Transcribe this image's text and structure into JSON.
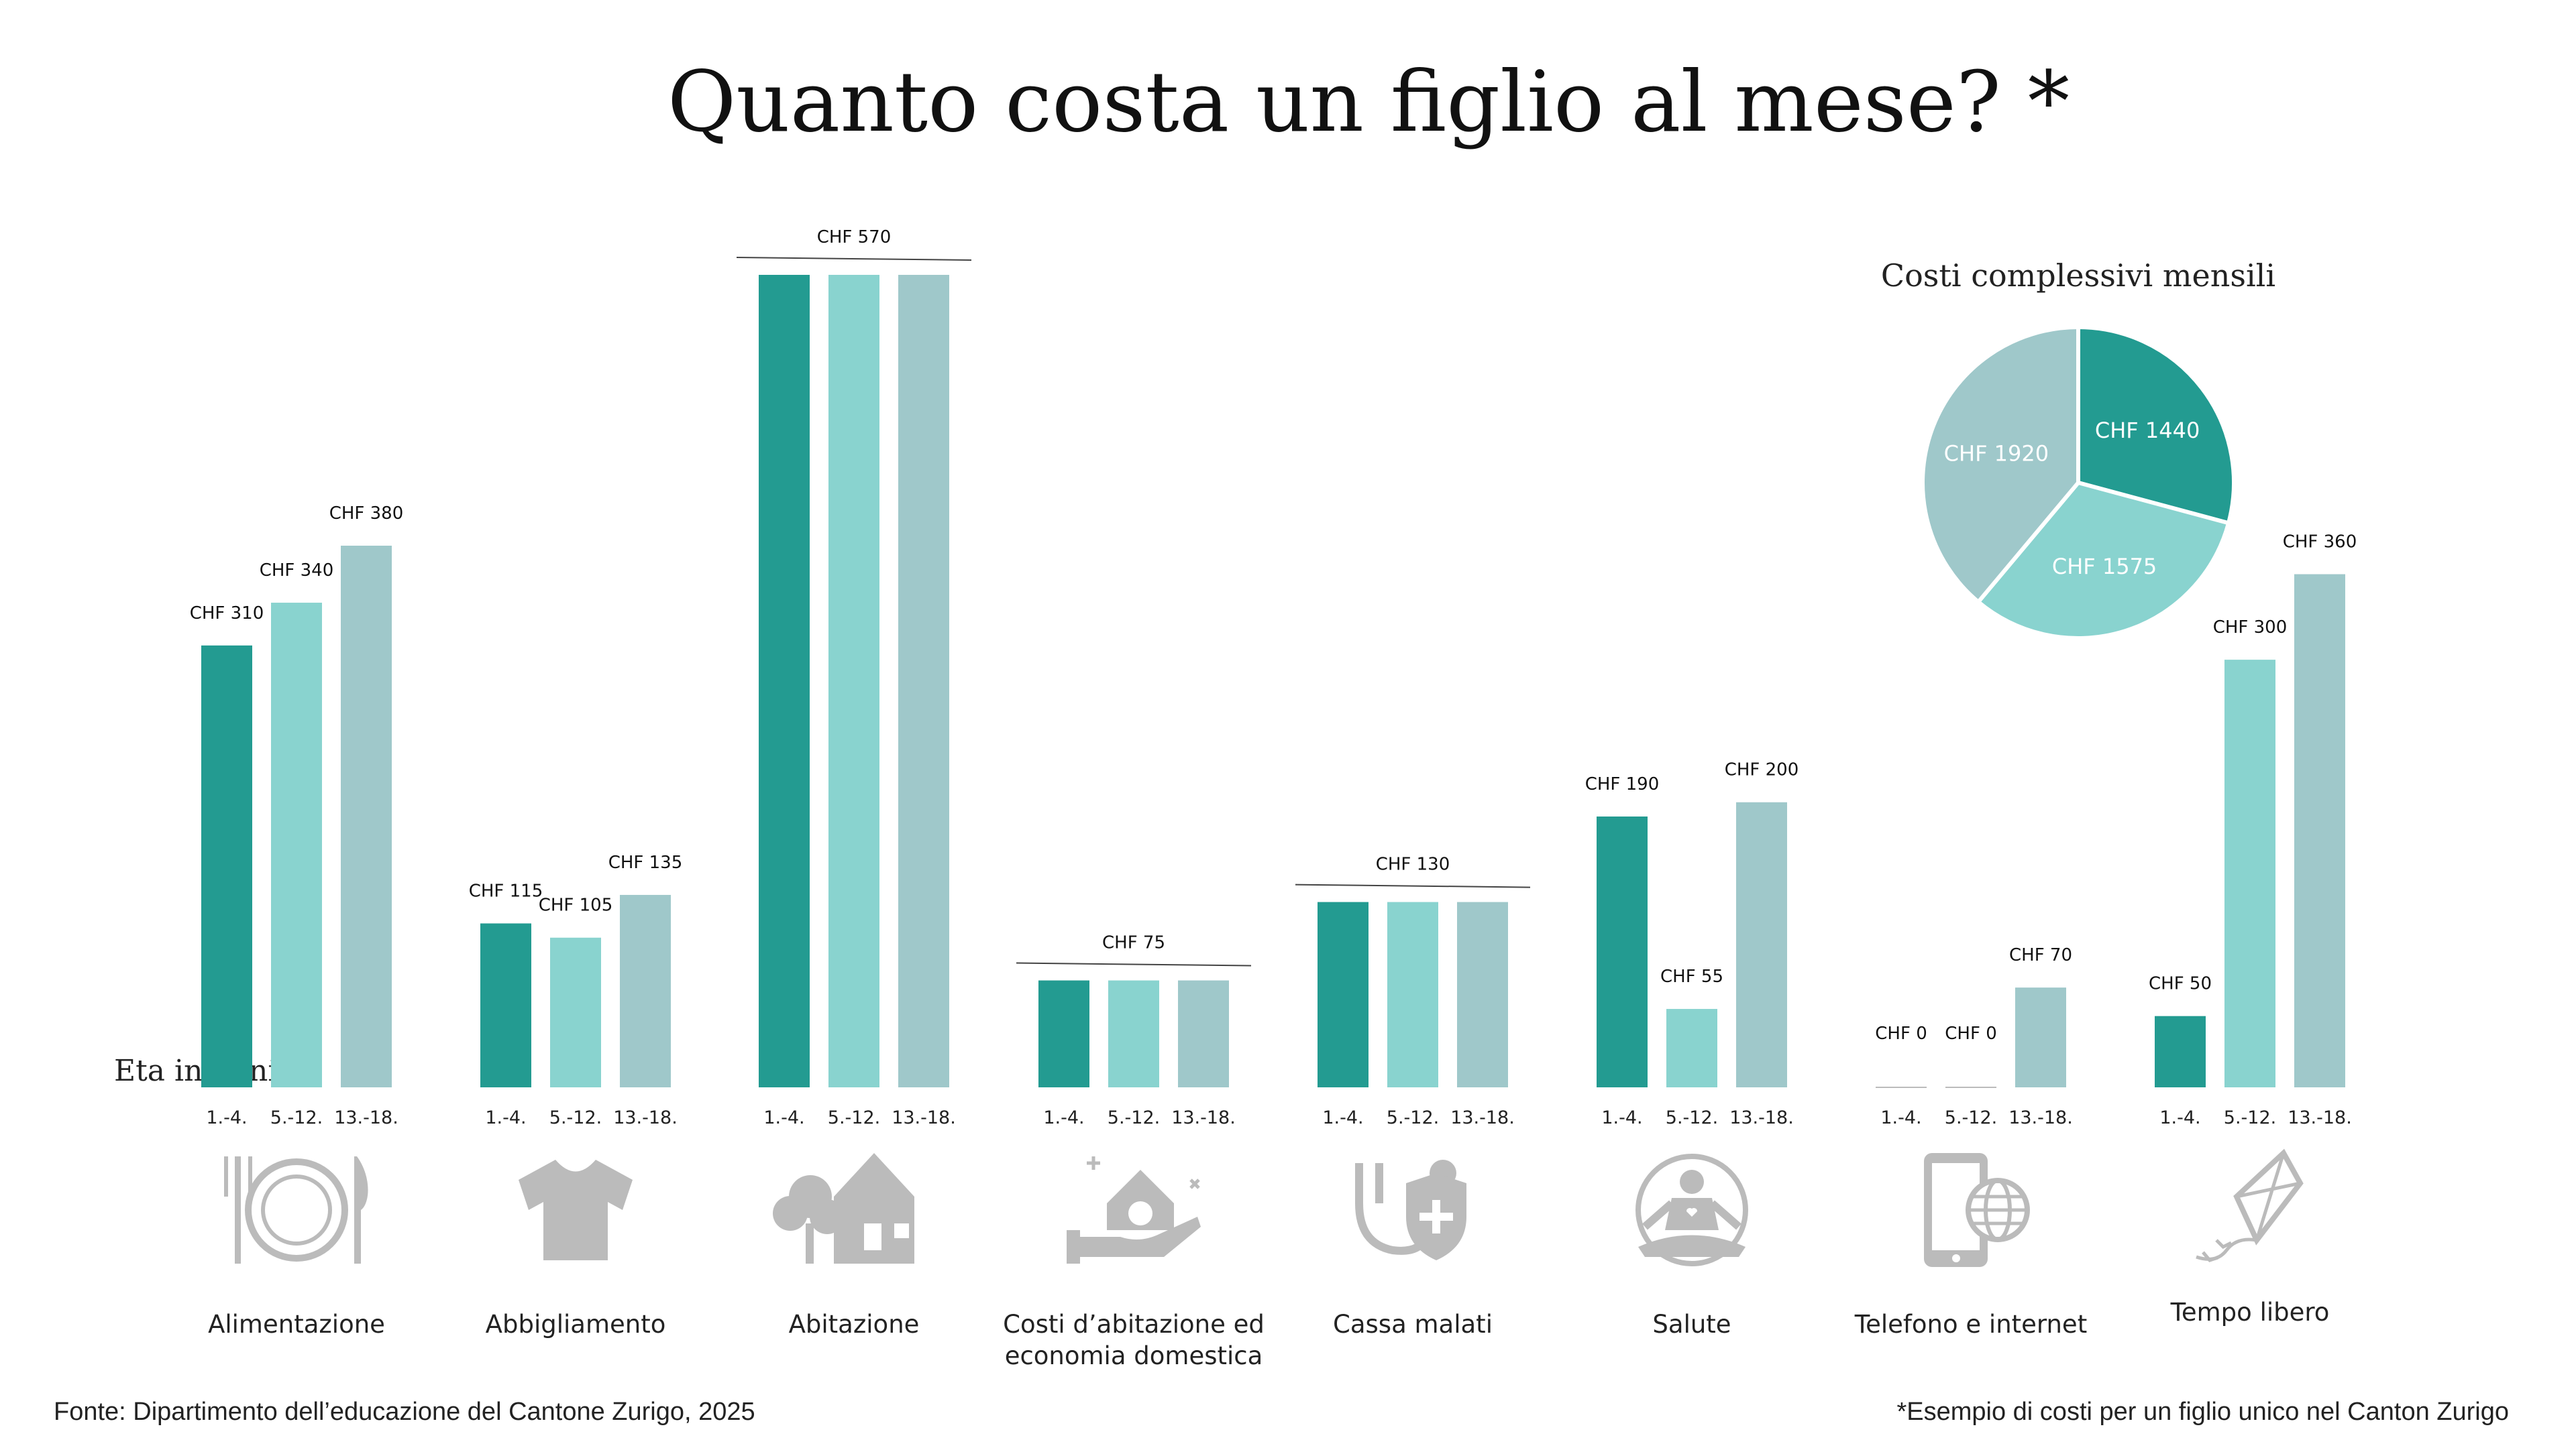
{
  "title": "Quanto costa un figlio al mese? *",
  "y_axis_label": "Eta in anni",
  "source": "Fonte: Dipartimento dell’educazione del Cantone Zurigo, 2025",
  "footnote": "*Esempio di costi per un figlio unico nel Canton Zurigo",
  "colors": {
    "age_1_4": "#239B91",
    "age_5_12": "#89D3CF",
    "age_13_18": "#9FC8CA",
    "icon": "#BBBBBB",
    "text": "#222222"
  },
  "chart_data": [
    {
      "type": "bar",
      "age_groups": [
        "1.-4.",
        "5.-12.",
        "13.-18."
      ],
      "categories": [
        {
          "name": "Alimentazione",
          "icon": "plate-cutlery-icon",
          "values": [
            310,
            340,
            380
          ],
          "labels": [
            "CHF 310",
            "CHF 340",
            "CHF 380"
          ],
          "shared_label": null
        },
        {
          "name": "Abbigliamento",
          "icon": "shirt-icon",
          "values": [
            115,
            105,
            135
          ],
          "labels": [
            "CHF 115",
            "CHF 105",
            "CHF 135"
          ],
          "shared_label": null
        },
        {
          "name": "Abitazione",
          "icon": "house-tree-icon",
          "values": [
            570,
            570,
            570
          ],
          "labels": [],
          "shared_label": "CHF 570"
        },
        {
          "name": "Costi d’abitazione ed economia domestica",
          "name_lines": [
            "Costi d’abitazione ed",
            "economia domestica"
          ],
          "icon": "house-hand-icon",
          "values": [
            75,
            75,
            75
          ],
          "labels": [],
          "shared_label": "CHF 75"
        },
        {
          "name": "Cassa malati",
          "icon": "stethoscope-shield-icon",
          "values": [
            130,
            130,
            130
          ],
          "labels": [],
          "shared_label": "CHF 130"
        },
        {
          "name": "Salute",
          "icon": "meditation-icon",
          "values": [
            190,
            55,
            200
          ],
          "labels": [
            "CHF 190",
            "CHF 55",
            "CHF 200"
          ],
          "shared_label": null
        },
        {
          "name": "Telefono e internet",
          "icon": "phone-globe-icon",
          "values": [
            0,
            0,
            70
          ],
          "labels": [
            "CHF 0",
            "CHF 0",
            "CHF 70"
          ],
          "shared_label": null
        },
        {
          "name": "Tempo libero",
          "icon": "kite-icon",
          "values": [
            50,
            300,
            360
          ],
          "labels": [
            "CHF 50",
            "CHF 300",
            "CHF 360"
          ],
          "shared_label": null
        }
      ],
      "ylim": [
        0,
        570
      ],
      "grid": false,
      "legend": "none"
    },
    {
      "type": "pie",
      "title": "Costi complessivi mensili",
      "slices": [
        {
          "label": "CHF 1440",
          "value": 1440,
          "color": "#239B91"
        },
        {
          "label": "CHF 1575",
          "value": 1575,
          "color": "#89D3CF"
        },
        {
          "label": "CHF 1920",
          "value": 1920,
          "color": "#9FC8CA"
        }
      ]
    }
  ]
}
